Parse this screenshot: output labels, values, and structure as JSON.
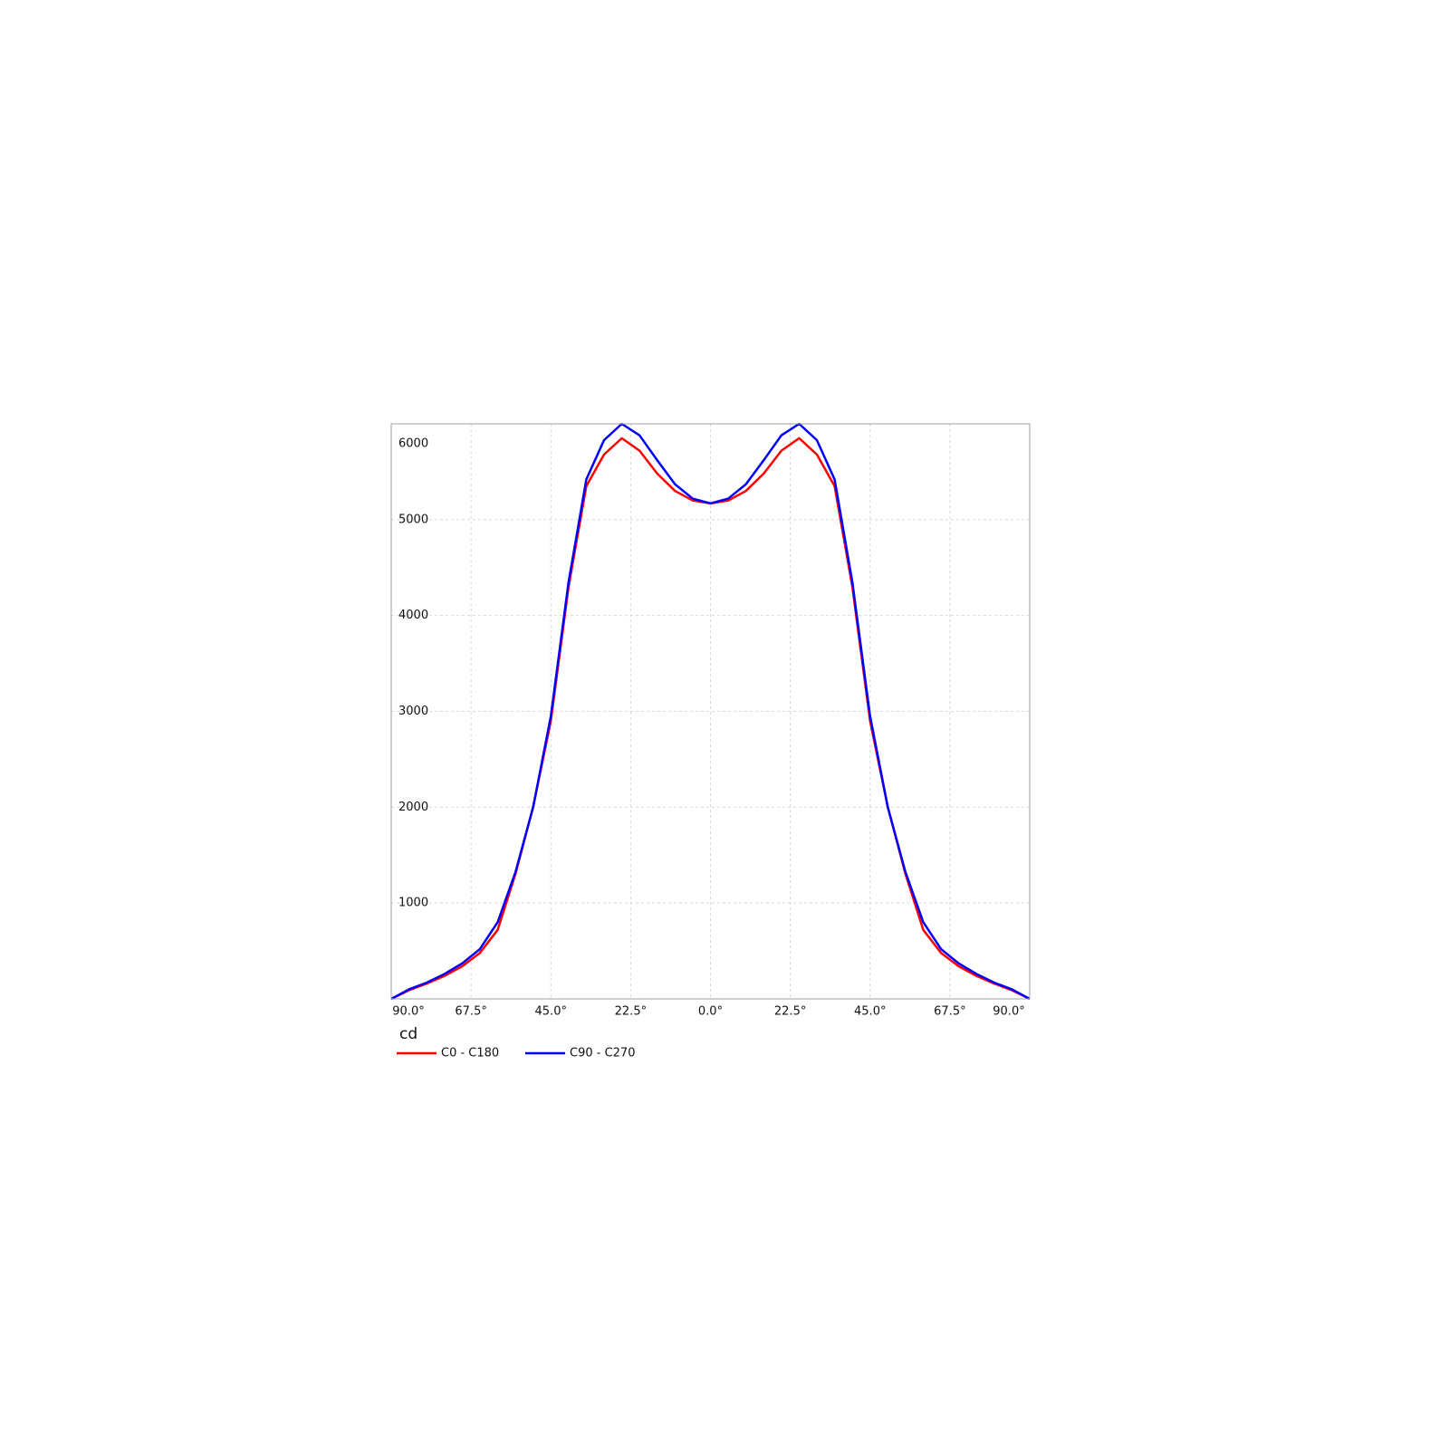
{
  "chart_data": {
    "type": "line",
    "y_label": "cd",
    "x": [
      -90,
      -85,
      -80,
      -75,
      -70,
      -65,
      -60,
      -55,
      -50,
      -45,
      -40,
      -35,
      -30,
      -25,
      -20,
      -15,
      -10,
      -5,
      0,
      5,
      10,
      15,
      20,
      25,
      30,
      35,
      40,
      45,
      50,
      55,
      60,
      65,
      70,
      75,
      80,
      85,
      90
    ],
    "series": [
      {
        "name": "C0 - C180",
        "color": "#ff0000",
        "values": [
          0,
          90,
          160,
          240,
          340,
          480,
          720,
          1300,
          2000,
          2900,
          4300,
          5350,
          5680,
          5850,
          5720,
          5480,
          5300,
          5200,
          5170,
          5200,
          5300,
          5480,
          5720,
          5850,
          5680,
          5350,
          4300,
          2900,
          2000,
          1300,
          720,
          480,
          340,
          240,
          160,
          90,
          0
        ]
      },
      {
        "name": "C90 - C270",
        "color": "#0000ff",
        "values": [
          0,
          100,
          170,
          260,
          370,
          520,
          800,
          1320,
          2000,
          2950,
          4350,
          5420,
          5830,
          6000,
          5880,
          5620,
          5370,
          5220,
          5170,
          5220,
          5370,
          5620,
          5880,
          6000,
          5830,
          5420,
          4350,
          2950,
          2000,
          1320,
          800,
          520,
          370,
          260,
          170,
          100,
          0
        ]
      }
    ],
    "xlim": [
      -90,
      90
    ],
    "xticks": [
      {
        "value": -90,
        "label": "90.0°"
      },
      {
        "value": -67.5,
        "label": "67.5°"
      },
      {
        "value": -45,
        "label": "45.0°"
      },
      {
        "value": -22.5,
        "label": "22.5°"
      },
      {
        "value": 0,
        "label": "0.0°"
      },
      {
        "value": 22.5,
        "label": "22.5°"
      },
      {
        "value": 45,
        "label": "45.0°"
      },
      {
        "value": 67.5,
        "label": "67.5°"
      },
      {
        "value": 90,
        "label": "90.0°"
      }
    ],
    "ylim": [
      0,
      6000
    ],
    "yticks": [
      1000,
      2000,
      3000,
      4000,
      5000,
      6000
    ],
    "grid": true
  }
}
